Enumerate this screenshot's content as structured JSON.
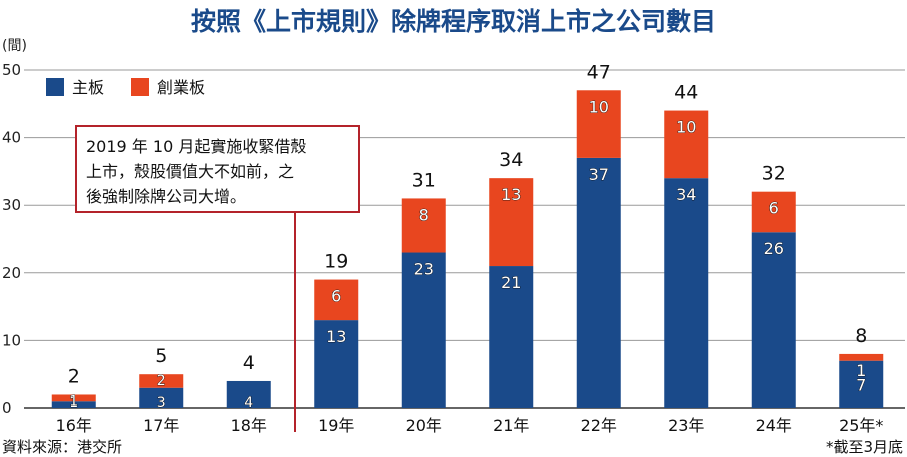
{
  "title": "按照《上市規則》除牌程序取消上市之公司數目",
  "unit_label": "(間)",
  "source": "資料來源：港交所",
  "footnote": "*截至3月底",
  "annotation": "2019年10月起實施收緊借殼上市，殼股價值大不如前，之後強制除牌公司大增。",
  "annotation_lines": [
    "2019 年 10 月起實施收緊借殼",
    "上市，殼股價值大不如前，之",
    "後強制除牌公司大增。"
  ],
  "colors": {
    "main_board": "#1a4a8a",
    "gem": "#e8461f",
    "title": "#1a4a8a",
    "annotation_border": "#b4232a",
    "grid": "#9a9a9a"
  },
  "chart_data": {
    "type": "bar",
    "stacked": true,
    "title": "按照《上市規則》除牌程序取消上市之公司數目",
    "ylabel": "(間)",
    "ylim": [
      0,
      50
    ],
    "yticks": [
      0,
      10,
      20,
      30,
      40,
      50
    ],
    "categories": [
      "16年",
      "17年",
      "18年",
      "19年",
      "20年",
      "21年",
      "22年",
      "23年",
      "24年",
      "25年*"
    ],
    "series": [
      {
        "name": "主板",
        "values": [
          1,
          3,
          4,
          13,
          23,
          21,
          37,
          34,
          26,
          7
        ],
        "color": "#1a4a8a"
      },
      {
        "name": "創業板",
        "values": [
          1,
          2,
          0,
          6,
          8,
          13,
          10,
          10,
          6,
          1
        ],
        "color": "#e8461f"
      }
    ],
    "totals": [
      2,
      5,
      4,
      19,
      31,
      34,
      47,
      44,
      32,
      8
    ],
    "legend_position": "top-left",
    "grid": true
  }
}
